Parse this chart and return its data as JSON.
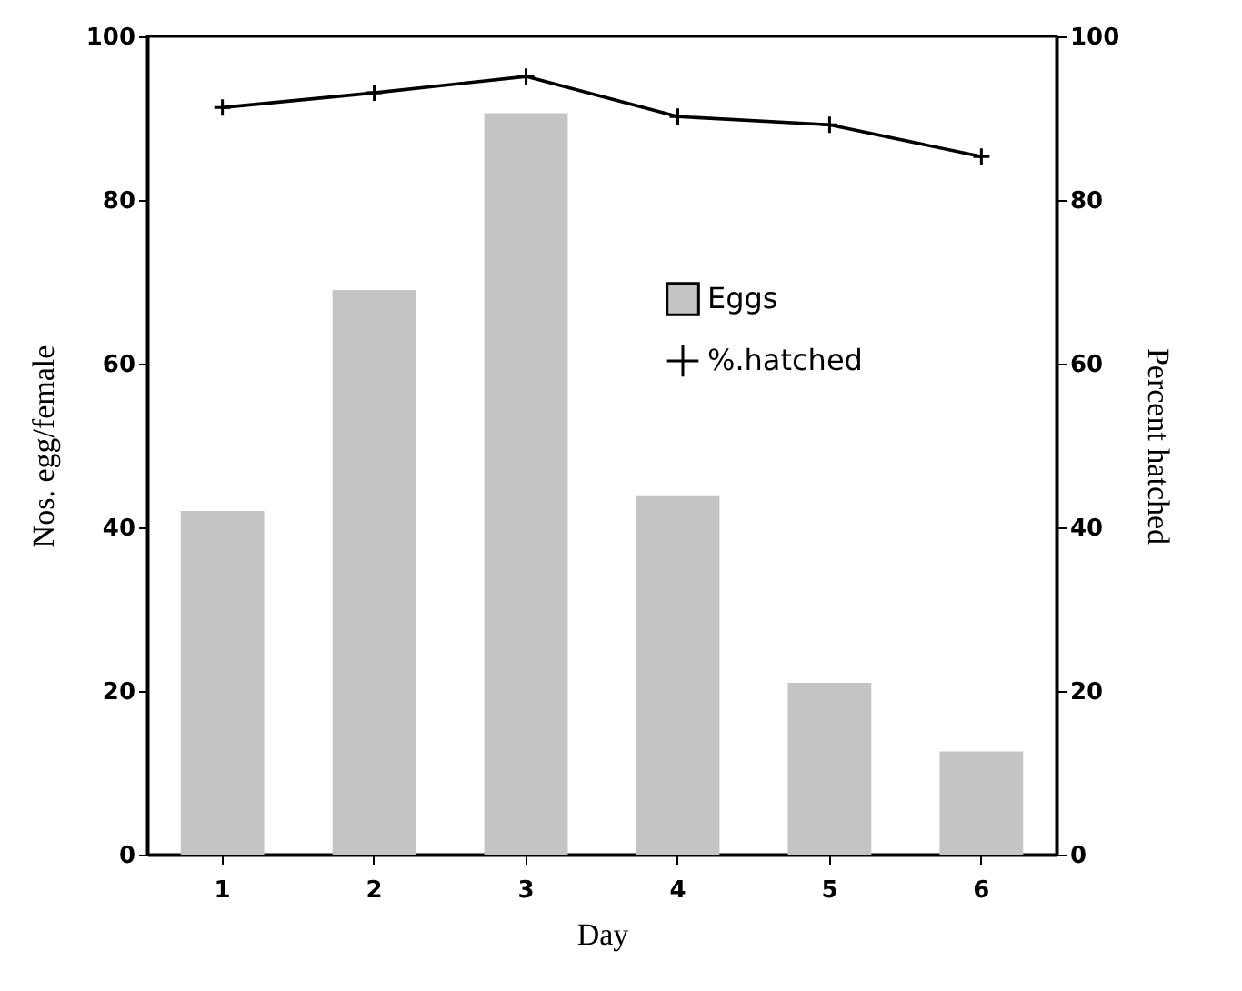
{
  "chart_data": {
    "type": "bar",
    "xlabel": "Day",
    "ylabel": "Nos. egg/female",
    "y2label": "Percent hatched",
    "categories": [
      "1",
      "2",
      "3",
      "4",
      "5",
      "6"
    ],
    "series": [
      {
        "name": "Eggs",
        "color": "#c4c4c4",
        "values": [
          42,
          69,
          90.6,
          43.8,
          21,
          12.6
        ]
      },
      {
        "name": "%.hatched",
        "type": "line",
        "axis": "y2",
        "color": "#000000",
        "marker": "cross",
        "values": [
          91.3,
          93.1,
          95.1,
          90.2,
          89.2,
          85.3
        ]
      }
    ],
    "ylim": [
      0,
      100
    ],
    "yticks": [
      0,
      20,
      40,
      60,
      80,
      100
    ],
    "y2lim": [
      0,
      100
    ],
    "y2ticks": [
      0,
      20,
      40,
      60,
      80,
      100
    ],
    "grid": false,
    "legend": "right"
  }
}
